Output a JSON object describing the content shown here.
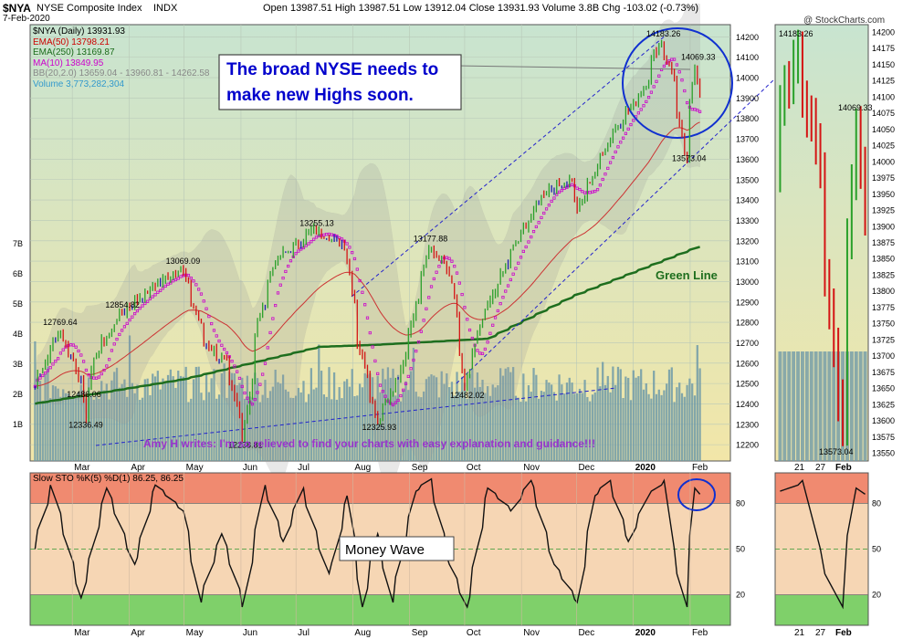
{
  "header": {
    "symbol": "$NYA",
    "name": "NYSE Composite Index",
    "exchange": "INDX",
    "date": "7-Feb-2020",
    "ohlc": "Open 13987.51  High 13987.51  Low 13912.04  Close 13931.93  Volume 3.8B  Chg -103.02 (-0.73%)",
    "watermark": "@ StockCharts.com"
  },
  "legend": [
    {
      "text": "$NYA (Daily) 13931.93",
      "color": "#000000"
    },
    {
      "text": "EMA(50) 13798.21",
      "color": "#cc0000"
    },
    {
      "text": "EMA(250) 13169.87",
      "color": "#1a6b1a"
    },
    {
      "text": "MA(10) 13849.95",
      "color": "#cc00cc"
    },
    {
      "text": "BB(20,2.0) 13659.04 - 13960.81 - 14262.58",
      "color": "#888888"
    },
    {
      "text": "Volume 3,773,282,304",
      "color": "#3399cc"
    }
  ],
  "annotations": {
    "callout": "The broad NYSE needs to make new Highs soon.",
    "callout_line1": "The broad NYSE needs to",
    "callout_line2": "make new Highs soon.",
    "green_line": "Green Line",
    "testimonial": "Amy H writes: I'm so relieved to find your charts with easy explanation and guidance!!!",
    "money_wave": "Money Wave"
  },
  "colors": {
    "bg_top": "#c8e4d0",
    "bg_bottom": "#f2e6a8",
    "up": "#2aa02a",
    "down": "#d41414",
    "flat": "#1c1cb0",
    "ema50": "#cc3333",
    "ema250": "#1e6e1e",
    "ma10": "#cc00cc",
    "bb_fill": "#999999",
    "volume": "#6f9aa8",
    "trendline": "#2222cc",
    "callout_text": "#0000cc",
    "testimonial": "#9933cc",
    "osc_red": "#f08a70",
    "osc_green": "#7fd06a",
    "osc_mid": "#f6d6b4"
  },
  "chart_data": [
    {
      "type": "line",
      "title": "$NYA NYSE Composite Index (Daily)",
      "x_tick_labels": [
        "Mar",
        "Apr",
        "May",
        "Jun",
        "Jul",
        "Aug",
        "Sep",
        "Oct",
        "Nov",
        "Dec",
        "2020",
        "Feb"
      ],
      "y_tick_labels": [
        "12200",
        "12300",
        "12400",
        "12500",
        "12600",
        "12700",
        "12800",
        "12900",
        "13000",
        "13100",
        "13200",
        "13300",
        "13400",
        "13500",
        "13600",
        "13700",
        "13800",
        "13900",
        "14000",
        "14100",
        "14200"
      ],
      "ylim": [
        12120,
        14260
      ],
      "volume_tick_labels": [
        "1B",
        "2B",
        "3B",
        "4B",
        "5B",
        "6B",
        "7B"
      ],
      "anchors": [
        {
          "x": "2019-02-08",
          "y": 12486
        },
        {
          "x": "2019-02-22",
          "y": 12760
        },
        {
          "x": "2019-03-06",
          "y": 12520
        },
        {
          "x": "2019-03-08",
          "y": 12336
        },
        {
          "x": "2019-03-14",
          "y": 12650
        },
        {
          "x": "2019-03-29",
          "y": 12854
        },
        {
          "x": "2019-04-15",
          "y": 12980
        },
        {
          "x": "2019-04-30",
          "y": 13069
        },
        {
          "x": "2019-05-13",
          "y": 12700
        },
        {
          "x": "2019-05-24",
          "y": 12600
        },
        {
          "x": "2019-06-03",
          "y": 12238
        },
        {
          "x": "2019-06-11",
          "y": 12800
        },
        {
          "x": "2019-06-20",
          "y": 13100
        },
        {
          "x": "2019-07-12",
          "y": 13255
        },
        {
          "x": "2019-07-29",
          "y": 13170
        },
        {
          "x": "2019-08-05",
          "y": 12700
        },
        {
          "x": "2019-08-15",
          "y": 12326
        },
        {
          "x": "2019-08-28",
          "y": 12550
        },
        {
          "x": "2019-09-12",
          "y": 13177
        },
        {
          "x": "2019-09-24",
          "y": 13050
        },
        {
          "x": "2019-10-02",
          "y": 12482
        },
        {
          "x": "2019-10-11",
          "y": 12800
        },
        {
          "x": "2019-10-28",
          "y": 13150
        },
        {
          "x": "2019-11-15",
          "y": 13450
        },
        {
          "x": "2019-11-29",
          "y": 13500
        },
        {
          "x": "2019-12-03",
          "y": 13350
        },
        {
          "x": "2019-12-20",
          "y": 13700
        },
        {
          "x": "2020-01-08",
          "y": 13950
        },
        {
          "x": "2020-01-17",
          "y": 14183
        },
        {
          "x": "2020-01-24",
          "y": 14000
        },
        {
          "x": "2020-01-31",
          "y": 13573
        },
        {
          "x": "2020-02-05",
          "y": 14069
        },
        {
          "x": "2020-02-07",
          "y": 13931
        }
      ],
      "point_labels": [
        {
          "x": "2019-02-22",
          "y": 12769.64,
          "text": "12769.64"
        },
        {
          "x": "2019-03-07",
          "y": 12486.06,
          "text": "12486.06"
        },
        {
          "x": "2019-03-08",
          "y": 12336.49,
          "text": "12336.49"
        },
        {
          "x": "2019-03-28",
          "y": 12854.82,
          "text": "12854.82"
        },
        {
          "x": "2019-04-30",
          "y": 13069.09,
          "text": "13069.09"
        },
        {
          "x": "2019-06-03",
          "y": 12238.81,
          "text": "12238.81"
        },
        {
          "x": "2019-07-12",
          "y": 13255.13,
          "text": "13255.13"
        },
        {
          "x": "2019-08-15",
          "y": 12325.93,
          "text": "12325.93"
        },
        {
          "x": "2019-09-12",
          "y": 13177.88,
          "text": "13177.88"
        },
        {
          "x": "2019-10-02",
          "y": 12482.02,
          "text": "12482.02"
        },
        {
          "x": "2020-01-17",
          "y": 14183.26,
          "text": "14183.26"
        },
        {
          "x": "2020-02-05",
          "y": 14069.33,
          "text": "14069.33"
        },
        {
          "x": "2020-01-31",
          "y": 13573.04,
          "text": "13573.04"
        }
      ],
      "ema250": [
        {
          "x": "2019-02-08",
          "y": 12400
        },
        {
          "x": "2019-05-01",
          "y": 12520
        },
        {
          "x": "2019-07-15",
          "y": 12680
        },
        {
          "x": "2019-08-15",
          "y": 12690
        },
        {
          "x": "2019-10-15",
          "y": 12720
        },
        {
          "x": "2019-12-01",
          "y": 12930
        },
        {
          "x": "2020-02-07",
          "y": 13170
        }
      ]
    },
    {
      "type": "line",
      "title": "Slow STO %K(5) %D(1) 86.25, 86.25",
      "y_tick_labels": [
        "20",
        "50",
        "80"
      ],
      "ylim": [
        0,
        100
      ],
      "anchors": [
        {
          "x": "2019-02-08",
          "y": 50
        },
        {
          "x": "2019-02-18",
          "y": 92
        },
        {
          "x": "2019-03-06",
          "y": 18
        },
        {
          "x": "2019-03-20",
          "y": 90
        },
        {
          "x": "2019-04-04",
          "y": 40
        },
        {
          "x": "2019-04-16",
          "y": 92
        },
        {
          "x": "2019-05-01",
          "y": 75
        },
        {
          "x": "2019-05-10",
          "y": 15
        },
        {
          "x": "2019-05-22",
          "y": 60
        },
        {
          "x": "2019-06-03",
          "y": 12
        },
        {
          "x": "2019-06-14",
          "y": 92
        },
        {
          "x": "2019-06-25",
          "y": 55
        },
        {
          "x": "2019-07-05",
          "y": 90
        },
        {
          "x": "2019-07-20",
          "y": 30
        },
        {
          "x": "2019-07-30",
          "y": 85
        },
        {
          "x": "2019-08-07",
          "y": 12
        },
        {
          "x": "2019-08-15",
          "y": 60
        },
        {
          "x": "2019-08-23",
          "y": 15
        },
        {
          "x": "2019-09-05",
          "y": 88
        },
        {
          "x": "2019-09-13",
          "y": 96
        },
        {
          "x": "2019-09-24",
          "y": 40
        },
        {
          "x": "2019-10-03",
          "y": 12
        },
        {
          "x": "2019-10-15",
          "y": 90
        },
        {
          "x": "2019-10-28",
          "y": 75
        },
        {
          "x": "2019-11-07",
          "y": 95
        },
        {
          "x": "2019-11-20",
          "y": 40
        },
        {
          "x": "2019-12-03",
          "y": 15
        },
        {
          "x": "2019-12-12",
          "y": 85
        },
        {
          "x": "2019-12-20",
          "y": 95
        },
        {
          "x": "2019-12-31",
          "y": 55
        },
        {
          "x": "2020-01-10",
          "y": 85
        },
        {
          "x": "2020-01-20",
          "y": 95
        },
        {
          "x": "2020-01-24",
          "y": 50
        },
        {
          "x": "2020-01-31",
          "y": 12
        },
        {
          "x": "2020-02-05",
          "y": 90
        },
        {
          "x": "2020-02-07",
          "y": 86
        }
      ]
    }
  ],
  "zoom_panel": {
    "x_tick_labels": [
      "21",
      "27",
      "Feb"
    ],
    "y_tick_labels": [
      "13550",
      "13575",
      "13600",
      "13625",
      "13650",
      "13675",
      "13700",
      "13725",
      "13750",
      "13775",
      "13800",
      "13825",
      "13850",
      "13875",
      "13900",
      "13925",
      "13950",
      "13975",
      "14000",
      "14025",
      "14050",
      "14075",
      "14100",
      "14125",
      "14150",
      "14175",
      "14200"
    ],
    "ylim": [
      13538,
      14212
    ],
    "point_labels": [
      "14183.26",
      "14069.33",
      "13573.04"
    ],
    "osc_tick_labels": [
      "20",
      "50",
      "80"
    ]
  }
}
